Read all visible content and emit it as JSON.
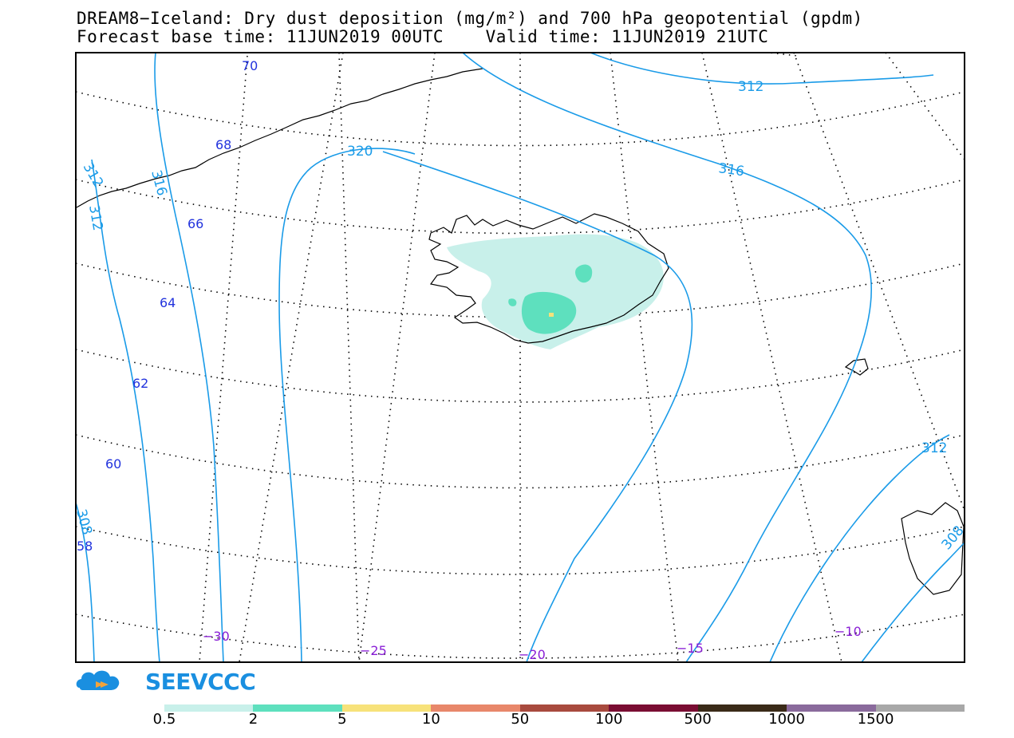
{
  "title": {
    "line1": "DREAM8−Iceland: Dry dust deposition (mg/m²) and 700 hPa geopotential (gpdm)",
    "line2": "Forecast base time: 11JUN2019 00UTC    Valid time: 11JUN2019 21UTC"
  },
  "contour_labels": [
    "312",
    "316",
    "320",
    "312",
    "316",
    "312",
    "308",
    "312",
    "308"
  ],
  "latitude_labels": [
    "70",
    "68",
    "66",
    "64",
    "62",
    "60",
    "58"
  ],
  "longitude_labels": [
    "−30",
    "−25",
    "−20",
    "−15",
    "−10"
  ],
  "colors": {
    "contour": "#1a9be8",
    "lat_label": "#2233dd",
    "lon_label": "#8a1fd6",
    "coast": "#000000",
    "graticule": "#000000"
  },
  "logo": {
    "text": "SEEVCCC"
  },
  "legend": {
    "labels": [
      "0.5",
      "2",
      "5",
      "10",
      "50",
      "100",
      "500",
      "1000",
      "1500"
    ],
    "colors": [
      "#c8f0ea",
      "#5ee0be",
      "#f7e27a",
      "#e8876a",
      "#a84a3e",
      "#7a0d33",
      "#3a2a18",
      "#8a6a9c",
      "#a8a8a8"
    ]
  },
  "deposition_shading": {
    "region": "Iceland",
    "max_class": "5",
    "classes_present": [
      "0.5",
      "2",
      "5"
    ]
  }
}
